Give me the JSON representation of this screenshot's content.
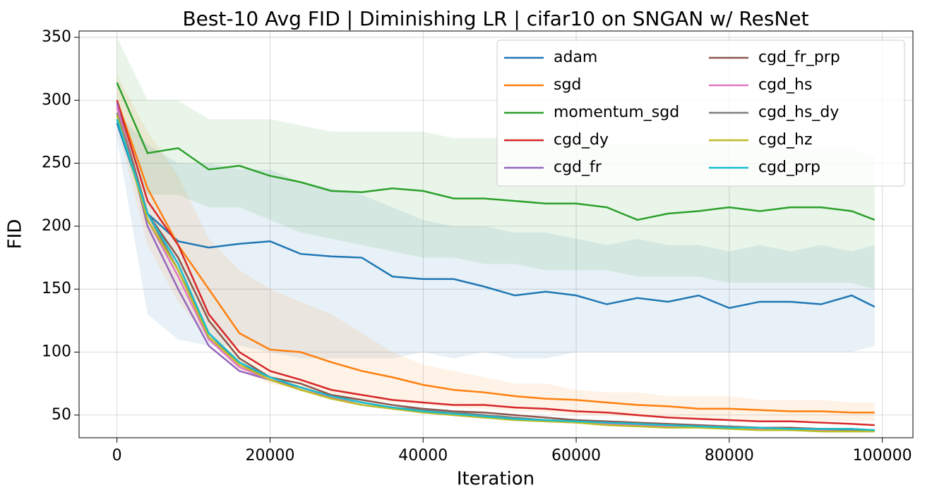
{
  "chart_data": {
    "type": "line",
    "title": "Best-10 Avg FID | Diminishing LR | cifar10 on SNGAN w/ ResNet",
    "xlabel": "Iteration",
    "ylabel": "FID",
    "x": [
      0,
      4000,
      8000,
      12000,
      16000,
      20000,
      24000,
      28000,
      32000,
      36000,
      40000,
      44000,
      48000,
      52000,
      56000,
      60000,
      64000,
      68000,
      72000,
      76000,
      80000,
      84000,
      88000,
      92000,
      96000,
      99000
    ],
    "xlim": [
      -4950,
      104000
    ],
    "ylim": [
      32,
      355
    ],
    "xticks": [
      0,
      20000,
      40000,
      60000,
      80000,
      100000
    ],
    "yticks": [
      50,
      100,
      150,
      200,
      250,
      300,
      350
    ],
    "grid": true,
    "legend": "upper right",
    "legend_columns": 2,
    "series": [
      {
        "name": "adam",
        "color": "#1f77b4",
        "values": [
          282,
          210,
          188,
          183,
          186,
          188,
          178,
          176,
          175,
          160,
          158,
          158,
          152,
          145,
          148,
          145,
          138,
          143,
          140,
          145,
          135,
          140,
          140,
          138,
          145,
          136
        ],
        "upper": [
          290,
          265,
          250,
          250,
          245,
          245,
          235,
          230,
          225,
          215,
          205,
          200,
          200,
          195,
          195,
          190,
          185,
          190,
          185,
          185,
          180,
          185,
          180,
          185,
          180,
          185
        ],
        "lower": [
          270,
          130,
          110,
          105,
          105,
          100,
          95,
          95,
          95,
          95,
          100,
          95,
          100,
          95,
          95,
          100,
          100,
          100,
          100,
          100,
          100,
          100,
          100,
          100,
          100,
          105
        ]
      },
      {
        "name": "sgd",
        "color": "#ff7f0e",
        "values": [
          300,
          230,
          185,
          150,
          115,
          102,
          100,
          92,
          85,
          80,
          74,
          70,
          68,
          65,
          63,
          62,
          60,
          58,
          57,
          55,
          55,
          54,
          53,
          53,
          52,
          52
        ],
        "upper": [
          320,
          275,
          240,
          190,
          165,
          150,
          140,
          130,
          115,
          100,
          90,
          85,
          80,
          75,
          75,
          70,
          68,
          68,
          65,
          65,
          65,
          62,
          62,
          62,
          60,
          60
        ],
        "lower": [
          280,
          185,
          140,
          110,
          85,
          75,
          70,
          65,
          62,
          60,
          58,
          56,
          55,
          53,
          52,
          50,
          50,
          48,
          48,
          47,
          47,
          46,
          45,
          45,
          45,
          45
        ]
      },
      {
        "name": "momentum_sgd",
        "color": "#2ca02c",
        "values": [
          314,
          258,
          262,
          245,
          248,
          240,
          235,
          228,
          227,
          230,
          228,
          222,
          222,
          220,
          218,
          218,
          215,
          205,
          210,
          212,
          215,
          212,
          215,
          215,
          212,
          205
        ],
        "upper": [
          350,
          300,
          300,
          285,
          285,
          285,
          280,
          275,
          275,
          275,
          275,
          270,
          270,
          270,
          270,
          270,
          265,
          265,
          265,
          265,
          265,
          265,
          262,
          262,
          262,
          255
        ],
        "lower": [
          280,
          225,
          225,
          215,
          215,
          205,
          195,
          190,
          185,
          180,
          175,
          175,
          170,
          170,
          165,
          165,
          165,
          160,
          160,
          160,
          155,
          155,
          155,
          155,
          155,
          150
        ]
      },
      {
        "name": "cgd_dy",
        "color": "#d62728",
        "values": [
          300,
          220,
          185,
          130,
          100,
          85,
          78,
          70,
          66,
          62,
          60,
          58,
          58,
          56,
          55,
          53,
          52,
          50,
          48,
          47,
          46,
          45,
          45,
          44,
          43,
          42
        ]
      },
      {
        "name": "cgd_fr",
        "color": "#9467bd",
        "values": [
          298,
          200,
          150,
          105,
          85,
          78,
          72,
          65,
          60,
          56,
          53,
          50,
          48,
          47,
          46,
          45,
          44,
          43,
          42,
          41,
          40,
          40,
          39,
          39,
          38,
          38
        ]
      },
      {
        "name": "cgd_fr_prp",
        "color": "#8c564b",
        "values": [
          295,
          210,
          175,
          125,
          95,
          80,
          75,
          66,
          62,
          58,
          55,
          53,
          52,
          50,
          48,
          46,
          45,
          44,
          43,
          42,
          41,
          40,
          40,
          39,
          39,
          38
        ]
      },
      {
        "name": "cgd_hs",
        "color": "#e377c2",
        "values": [
          295,
          205,
          160,
          110,
          88,
          78,
          70,
          64,
          58,
          55,
          52,
          50,
          48,
          47,
          45,
          44,
          43,
          42,
          41,
          40,
          40,
          39,
          39,
          38,
          38,
          37
        ]
      },
      {
        "name": "cgd_hs_dy",
        "color": "#7f7f7f",
        "values": [
          290,
          210,
          165,
          115,
          90,
          80,
          72,
          65,
          60,
          56,
          54,
          52,
          50,
          48,
          46,
          45,
          44,
          43,
          42,
          41,
          41,
          40,
          39,
          39,
          38,
          38
        ]
      },
      {
        "name": "cgd_hz",
        "color": "#bcbd22",
        "values": [
          288,
          205,
          165,
          112,
          90,
          78,
          70,
          63,
          58,
          55,
          52,
          50,
          48,
          46,
          45,
          44,
          42,
          41,
          40,
          40,
          39,
          38,
          38,
          37,
          37,
          37
        ]
      },
      {
        "name": "cgd_prp",
        "color": "#17becf",
        "values": [
          285,
          210,
          170,
          115,
          92,
          80,
          72,
          65,
          60,
          56,
          53,
          51,
          49,
          47,
          46,
          45,
          44,
          43,
          42,
          41,
          40,
          40,
          39,
          39,
          39,
          38
        ]
      }
    ]
  }
}
